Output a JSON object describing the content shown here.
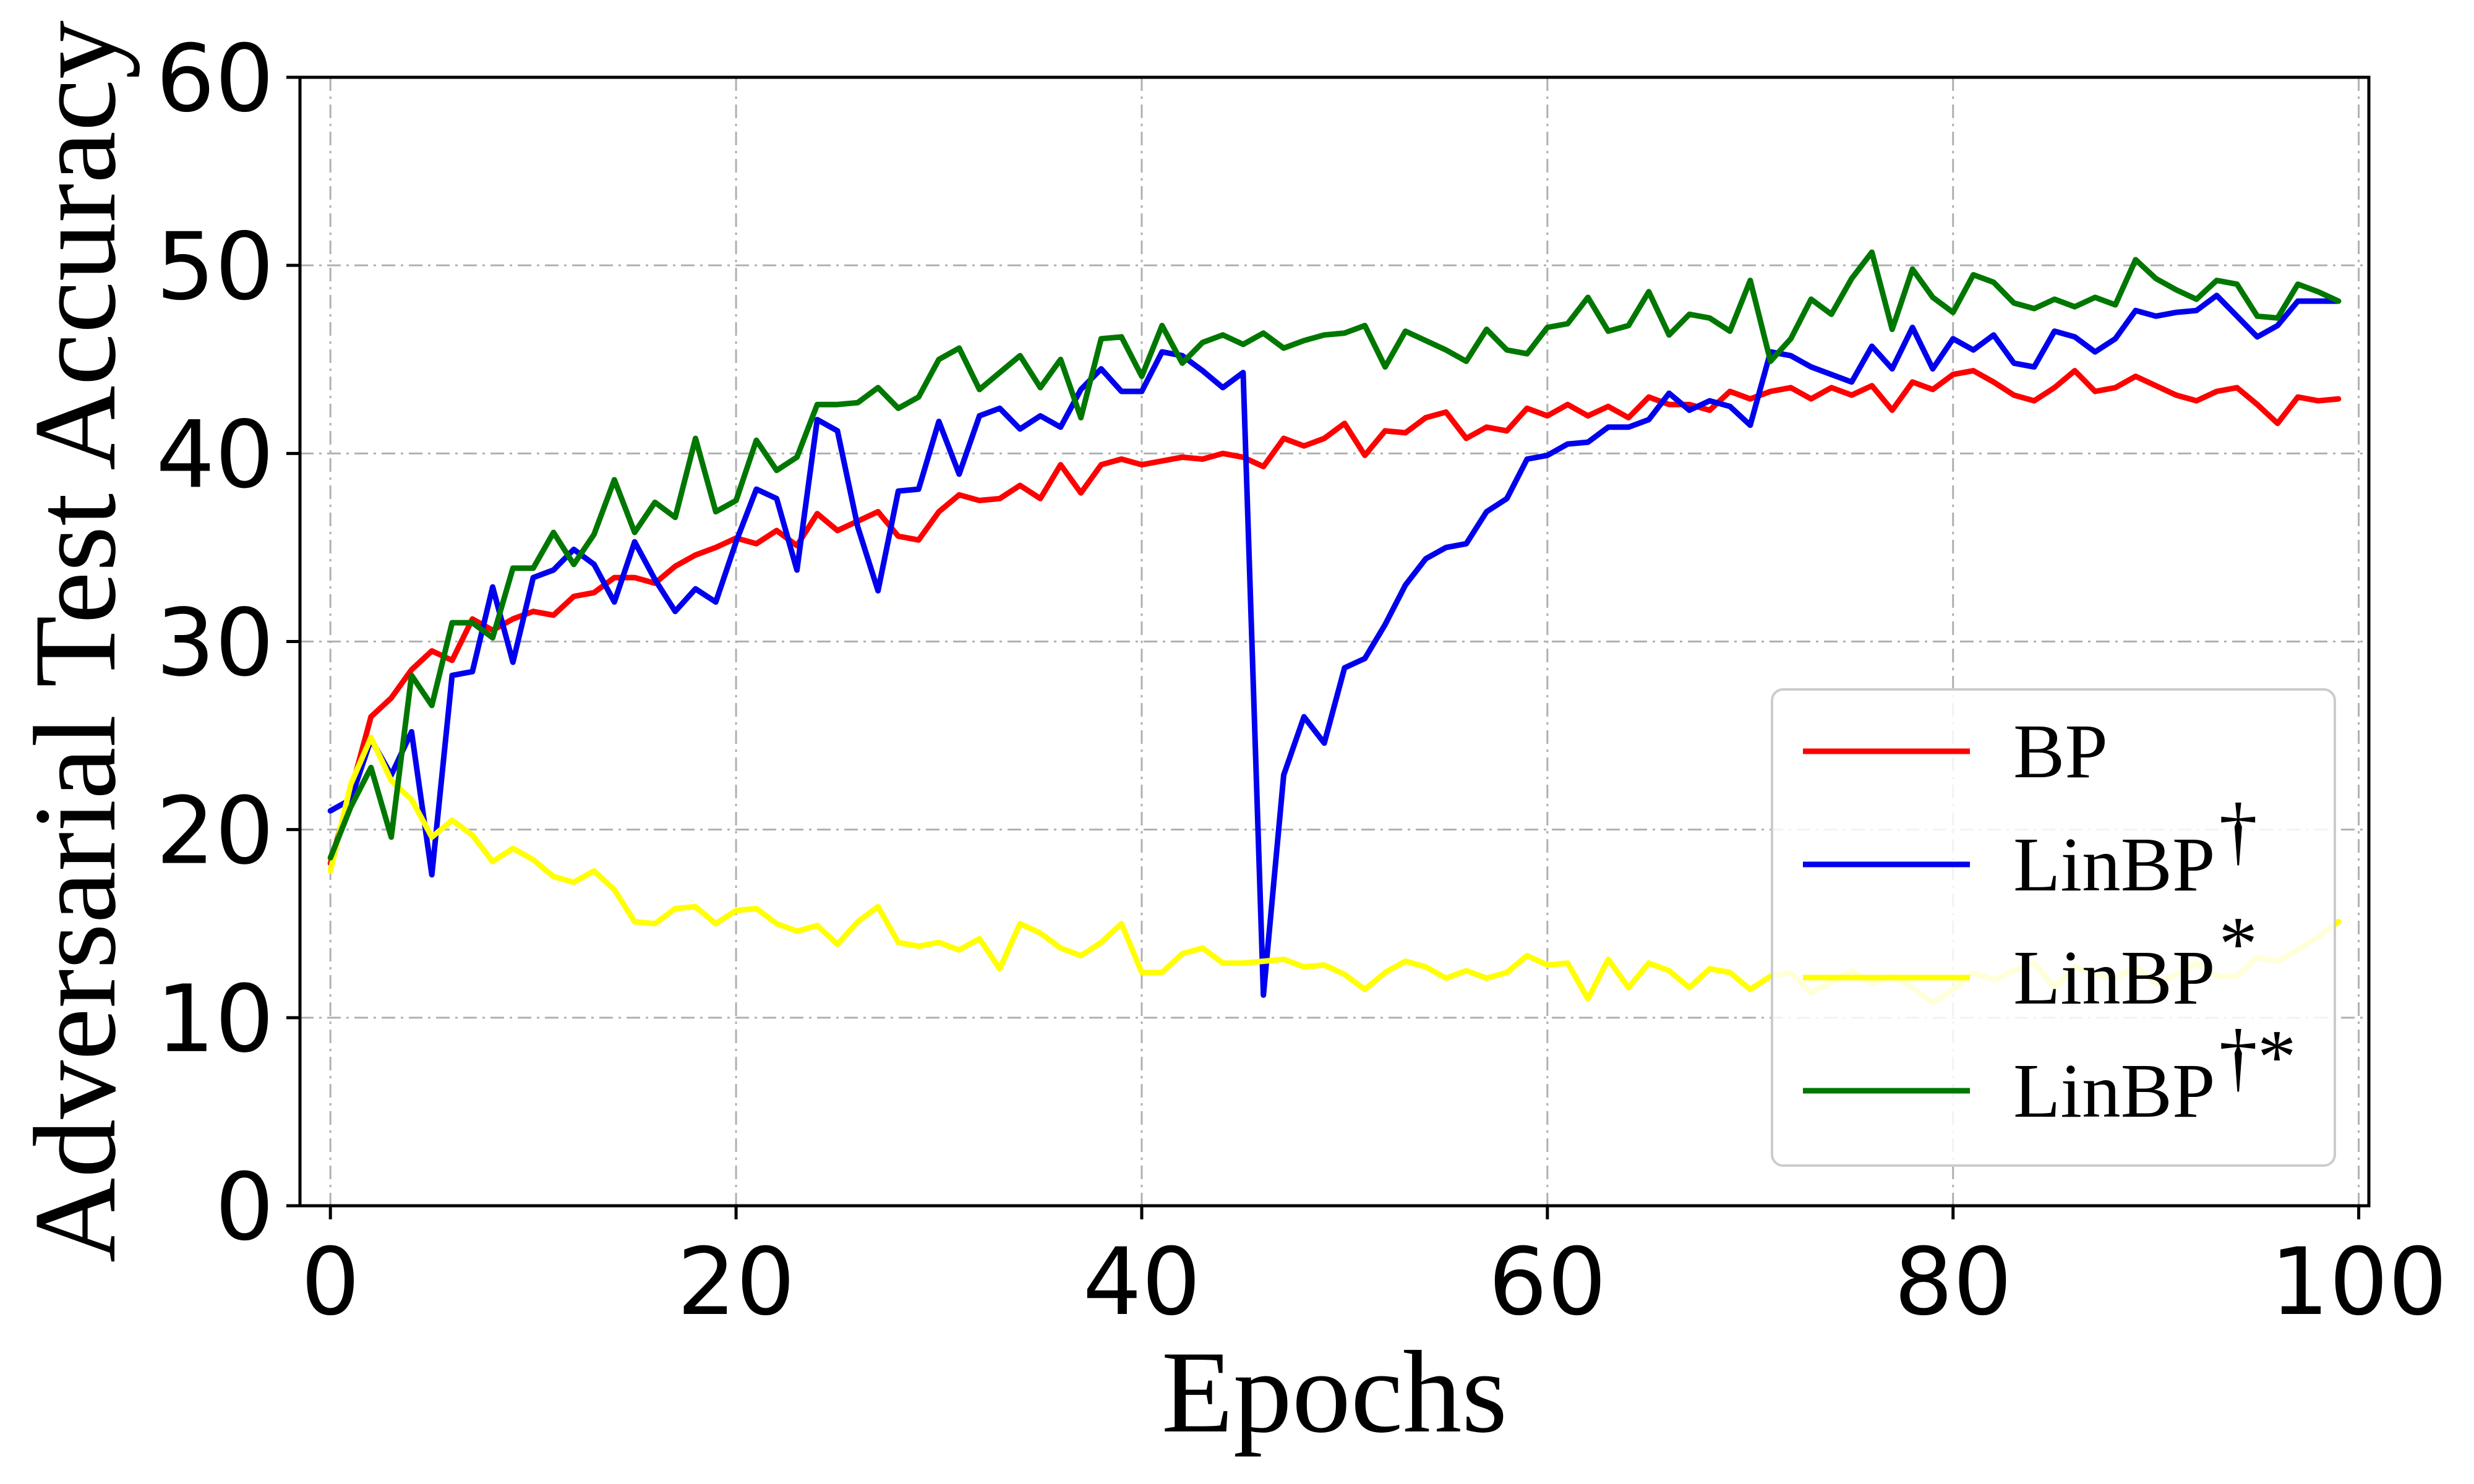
{
  "chart_data": {
    "type": "line",
    "xlabel": "Epochs",
    "ylabel": "Adversarial Test Accuracy",
    "xlim": [
      -1.5,
      100.5
    ],
    "ylim": [
      0,
      60
    ],
    "xticks": [
      0,
      20,
      40,
      60,
      80,
      100
    ],
    "yticks": [
      0,
      10,
      20,
      30,
      40,
      50,
      60
    ],
    "grid": true,
    "legend_position": "lower-right",
    "series": [
      {
        "name": "BP",
        "sup": "",
        "color": "#ff0000",
        "values": [
          18.2,
          22.0,
          26.0,
          27.0,
          28.5,
          29.5,
          29.0,
          31.2,
          30.6,
          31.2,
          31.6,
          31.4,
          32.4,
          32.6,
          33.4,
          33.4,
          33.1,
          34.0,
          34.6,
          35.0,
          35.5,
          35.2,
          35.9,
          35.1,
          36.8,
          35.9,
          36.4,
          36.9,
          35.6,
          35.4,
          36.9,
          37.8,
          37.5,
          37.6,
          38.3,
          37.6,
          39.4,
          37.9,
          39.4,
          39.7,
          39.4,
          39.6,
          39.8,
          39.7,
          40.0,
          39.8,
          39.3,
          40.8,
          40.4,
          40.8,
          41.6,
          39.9,
          41.2,
          41.1,
          41.9,
          42.2,
          40.8,
          41.4,
          41.2,
          42.4,
          42.0,
          42.6,
          42.0,
          42.5,
          41.9,
          43.0,
          42.6,
          42.6,
          42.3,
          43.3,
          42.9,
          43.3,
          43.5,
          42.9,
          43.5,
          43.1,
          43.6,
          42.3,
          43.8,
          43.4,
          44.2,
          44.4,
          43.8,
          43.1,
          42.8,
          43.5,
          44.4,
          43.3,
          43.5,
          44.1,
          43.6,
          43.1,
          42.8,
          43.3,
          43.5,
          42.6,
          41.6,
          43.0,
          42.8,
          42.9
        ]
      },
      {
        "name": "LinBP",
        "sup": "†",
        "color": "#0000ee",
        "values": [
          21.0,
          21.6,
          24.8,
          22.9,
          25.2,
          17.6,
          28.2,
          28.4,
          32.9,
          28.9,
          33.4,
          33.8,
          34.9,
          34.1,
          32.1,
          35.3,
          33.3,
          31.6,
          32.8,
          32.1,
          35.3,
          38.1,
          37.6,
          33.8,
          41.8,
          41.2,
          36.1,
          32.7,
          38.0,
          38.1,
          41.7,
          38.9,
          42.0,
          42.4,
          41.3,
          42.0,
          41.4,
          43.4,
          44.5,
          43.3,
          43.3,
          45.4,
          45.2,
          44.4,
          43.5,
          44.3,
          11.2,
          22.9,
          26.0,
          24.6,
          28.6,
          29.1,
          30.9,
          33.0,
          34.4,
          35.0,
          35.2,
          36.9,
          37.6,
          39.7,
          39.9,
          40.5,
          40.6,
          41.4,
          41.4,
          41.8,
          43.2,
          42.3,
          42.8,
          42.5,
          41.5,
          45.4,
          45.2,
          44.6,
          44.2,
          43.8,
          45.7,
          44.5,
          46.7,
          44.5,
          46.1,
          45.5,
          46.3,
          44.8,
          44.6,
          46.5,
          46.2,
          45.4,
          46.1,
          47.6,
          47.3,
          47.5,
          47.6,
          48.4,
          47.3,
          46.2,
          46.8,
          48.1,
          48.1,
          48.1
        ]
      },
      {
        "name": "LinBP",
        "sup": "*",
        "color": "#ffff00",
        "values": [
          17.8,
          22.4,
          24.9,
          22.6,
          21.6,
          19.6,
          20.5,
          19.7,
          18.3,
          19.0,
          18.4,
          17.5,
          17.2,
          17.8,
          16.8,
          15.1,
          15.0,
          15.8,
          15.9,
          15.0,
          15.7,
          15.8,
          15.0,
          14.6,
          14.9,
          13.9,
          15.1,
          15.9,
          14.0,
          13.8,
          14.0,
          13.6,
          14.2,
          12.6,
          15.0,
          14.5,
          13.7,
          13.3,
          14.0,
          15.0,
          12.4,
          12.4,
          13.4,
          13.7,
          12.9,
          12.9,
          13.0,
          13.1,
          12.7,
          12.8,
          12.3,
          11.5,
          12.4,
          13.0,
          12.7,
          12.1,
          12.5,
          12.1,
          12.4,
          13.3,
          12.8,
          12.9,
          11.0,
          13.1,
          11.6,
          12.9,
          12.5,
          11.6,
          12.6,
          12.4,
          11.5,
          12.2,
          12.4,
          11.3,
          11.9,
          12.5,
          11.8,
          12.2,
          11.6,
          10.8,
          11.5,
          12.4,
          12.0,
          12.5,
          12.9,
          11.6,
          12.7,
          12.3,
          12.1,
          12.7,
          11.8,
          12.3,
          12.9,
          12.2,
          12.2,
          13.2,
          13.0,
          13.6,
          14.3,
          15.1
        ]
      },
      {
        "name": "LinBP",
        "sup": "†*",
        "color": "#007700",
        "values": [
          18.5,
          21.2,
          23.3,
          19.6,
          28.2,
          26.6,
          31.0,
          31.0,
          30.2,
          33.9,
          33.9,
          35.8,
          34.1,
          35.7,
          38.6,
          35.8,
          37.4,
          36.6,
          40.8,
          36.9,
          37.5,
          40.7,
          39.1,
          39.8,
          42.6,
          42.6,
          42.7,
          43.5,
          42.4,
          43.0,
          45.0,
          45.6,
          43.4,
          44.3,
          45.2,
          43.5,
          45.0,
          41.9,
          46.1,
          46.2,
          44.1,
          46.8,
          44.8,
          45.9,
          46.3,
          45.8,
          46.4,
          45.6,
          46.0,
          46.3,
          46.4,
          46.8,
          44.6,
          46.5,
          46.0,
          45.5,
          44.9,
          46.6,
          45.5,
          45.3,
          46.7,
          46.9,
          48.3,
          46.5,
          46.8,
          48.6,
          46.3,
          47.4,
          47.2,
          46.5,
          49.2,
          44.9,
          46.1,
          48.2,
          47.4,
          49.3,
          50.7,
          46.6,
          49.8,
          48.3,
          47.5,
          49.5,
          49.1,
          48.0,
          47.7,
          48.2,
          47.8,
          48.3,
          47.9,
          50.3,
          49.3,
          48.7,
          48.2,
          49.2,
          49.0,
          47.3,
          47.2,
          49.0,
          48.6,
          48.1
        ]
      }
    ]
  }
}
